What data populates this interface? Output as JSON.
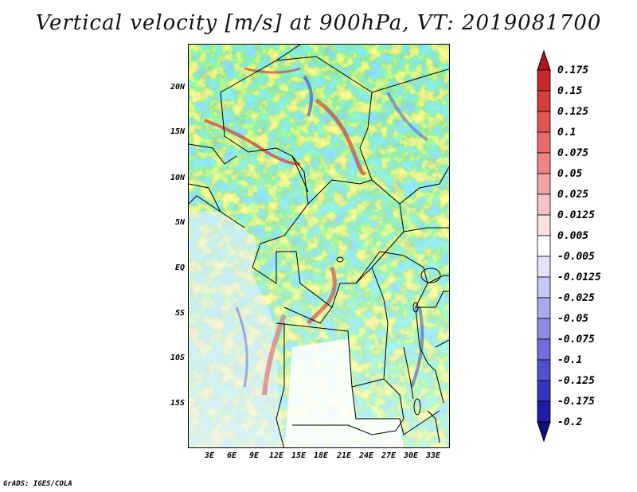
{
  "title": "Vertical velocity [m/s] at 900hPa, VT: 2019081700",
  "footer": "GrADS: IGES/COLA",
  "map": {
    "y_ticks": [
      "20N",
      "15N",
      "10N",
      "5N",
      "EQ",
      "5S",
      "10S",
      "15S"
    ],
    "x_ticks": [
      "3E",
      "6E",
      "9E",
      "12E",
      "15E",
      "18E",
      "21E",
      "24E",
      "27E",
      "30E",
      "33E"
    ],
    "colors": {
      "red_dark": "#c0282b",
      "red_mid": "#e6696a",
      "red_light": "#f5bcbc",
      "white": "#ffffff",
      "blue_light": "#c2c2f2",
      "blue_mid": "#7c7ce6",
      "blue_dark": "#2626b6"
    }
  },
  "colorbar": {
    "labels": [
      "0.175",
      "0.15",
      "0.125",
      "0.1",
      "0.075",
      "0.05",
      "0.025",
      "0.0125",
      "0.005",
      "-0.005",
      "-0.0125",
      "-0.025",
      "-0.05",
      "-0.075",
      "-0.1",
      "-0.125",
      "-0.175",
      "-0.2"
    ],
    "colors": [
      "#b01818",
      "#c92a2a",
      "#d83d3d",
      "#e35454",
      "#e86a6a",
      "#ef8585",
      "#f4a3a3",
      "#f8c3c3",
      "#fbe0e0",
      "#ffffff",
      "#e3e3fb",
      "#c7c7f5",
      "#a9a9ee",
      "#8c8ce6",
      "#6e6edd",
      "#5050cf",
      "#3434bd",
      "#1c1ca6",
      "#0f0f7e"
    ]
  }
}
